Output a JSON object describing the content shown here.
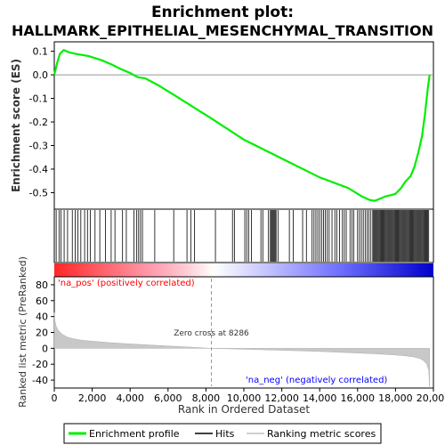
{
  "chart_data": {
    "type": "line",
    "title": "Enrichment plot:",
    "subtitle": "HALLMARK_EPITHELIAL_MESENCHYMAL_TRANSITION",
    "panels": {
      "es": {
        "ylabel": "Enrichment score (ES)",
        "ylim": [
          -0.57,
          0.14
        ],
        "yticks": [
          0.1,
          0.0,
          -0.1,
          -0.2,
          -0.3,
          -0.4,
          -0.5
        ],
        "ytick_labels": [
          "0.1",
          "0.0",
          "-0.1",
          "-0.2",
          "-0.3",
          "-0.4",
          "-0.5"
        ],
        "series": [
          {
            "name": "Enrichment profile",
            "color": "#00ee00",
            "x": [
              0,
              150,
              300,
              500,
              800,
              1200,
              1800,
              2500,
              3000,
              3500,
              4000,
              4400,
              4800,
              5500,
              6500,
              8286,
              10000,
              12000,
              14000,
              15500,
              16200,
              16600,
              16900,
              17200,
              17500,
              17800,
              18000,
              18300,
              18500,
              18800,
              19000,
              19200,
              19400,
              19550,
              19700,
              19800
            ],
            "y": [
              0.0,
              0.05,
              0.09,
              0.105,
              0.095,
              0.088,
              0.08,
              0.062,
              0.045,
              0.025,
              0.008,
              -0.01,
              -0.015,
              -0.045,
              -0.095,
              -0.185,
              -0.275,
              -0.355,
              -0.435,
              -0.48,
              -0.515,
              -0.53,
              -0.535,
              -0.525,
              -0.515,
              -0.51,
              -0.505,
              -0.48,
              -0.455,
              -0.43,
              -0.39,
              -0.33,
              -0.26,
              -0.17,
              -0.06,
              0.0
            ]
          }
        ]
      },
      "hits": {
        "series_name": "Hits",
        "positions": [
          100,
          250,
          350,
          520,
          700,
          950,
          1100,
          1250,
          1400,
          1600,
          1750,
          1900,
          2150,
          2400,
          2700,
          3000,
          3200,
          3600,
          3800,
          4200,
          4350,
          4450,
          4550,
          4650,
          5300,
          6300,
          7000,
          7200,
          7400,
          8500,
          9400,
          9500,
          10050,
          10150,
          10250,
          10400,
          10900,
          11000,
          11300,
          11400,
          11450,
          11500,
          11550,
          11600,
          11650,
          11700,
          11800,
          12400,
          12600,
          13100,
          13300,
          13600,
          13700,
          13800,
          13900,
          14000,
          14100,
          14200,
          14300,
          14400,
          14500,
          14650,
          14800,
          14900,
          15050,
          15200,
          15300,
          15400,
          15600,
          15700,
          15800,
          16000,
          16100,
          16200,
          16300,
          16400,
          16500,
          16600,
          16700,
          16800,
          16850,
          16900,
          16950,
          17000,
          17050,
          17100,
          17150,
          17200,
          17250,
          17300,
          17350,
          17400,
          17450,
          17500,
          17550,
          17600,
          17650,
          17700,
          17750,
          17800,
          17850,
          17900,
          17950,
          18000,
          18050,
          18100,
          18150,
          18200,
          18250,
          18300,
          18350,
          18400,
          18450,
          18500,
          18550,
          18600,
          18650,
          18700,
          18750,
          18800,
          18850,
          18900,
          18950,
          19000,
          19050,
          19100,
          19150,
          19200,
          19250,
          19300,
          19350,
          19400,
          19450,
          19500,
          19550,
          19600,
          19650,
          19700,
          19750
        ]
      },
      "metric": {
        "series_name": "Ranking metric scores",
        "ylabel": "Ranked list metric (PreRanked)",
        "ylim": [
          -50,
          90
        ],
        "yticks": [
          80,
          60,
          40,
          20,
          0,
          -20,
          -40
        ],
        "ytick_labels": [
          "80",
          "60",
          "40",
          "20",
          "0",
          "-20",
          "-40"
        ],
        "x": [
          0,
          30,
          100,
          200,
          400,
          700,
          1000,
          1500,
          2000,
          3000,
          4000,
          5000,
          6000,
          7000,
          8286,
          9000,
          10000,
          11000,
          12000,
          13000,
          14000,
          15000,
          16000,
          17000,
          18000,
          18500,
          19000,
          19300,
          19500,
          19650,
          19750,
          19800
        ],
        "y": [
          45,
          35,
          28,
          23,
          18,
          14,
          12,
          10,
          9,
          7,
          5.5,
          4.2,
          3,
          1.8,
          0,
          -0.5,
          -1.2,
          -1.8,
          -2.5,
          -3.2,
          -4,
          -5,
          -6,
          -7,
          -8.5,
          -9.5,
          -11,
          -13,
          -16,
          -20,
          -28,
          -50
        ]
      }
    },
    "xlabel": "Rank in Ordered Dataset",
    "xlim": [
      0,
      20000
    ],
    "xticks": [
      0,
      2000,
      4000,
      6000,
      8000,
      10000,
      12000,
      14000,
      16000,
      18000,
      20000
    ],
    "xtick_labels": [
      "0",
      "2,000",
      "4,000",
      "6,000",
      "8,000",
      "10,000",
      "12,000",
      "14,000",
      "16,000",
      "18,000",
      "20,000"
    ],
    "n_genes": 19800,
    "zero_cross": 8286,
    "annotations": {
      "na_pos": "'na_pos' (positively correlated)",
      "na_neg": "'na_neg' (negatively correlated)",
      "zero_cross": "Zero cross at 8286"
    },
    "legend": {
      "placement": "bottom",
      "items": [
        {
          "label": "Enrichment profile",
          "color": "#00ee00"
        },
        {
          "label": "Hits",
          "color": "#000000"
        },
        {
          "label": "Ranking metric scores",
          "color": "#c0c0c0"
        }
      ]
    },
    "colors": {
      "pos_band": "#ff0000",
      "neutral_band": "#ffffff",
      "neg_band": "#0000ff",
      "pos_text": "#ff0000",
      "neg_text": "#0000ff",
      "zero_line": "#888888"
    }
  }
}
